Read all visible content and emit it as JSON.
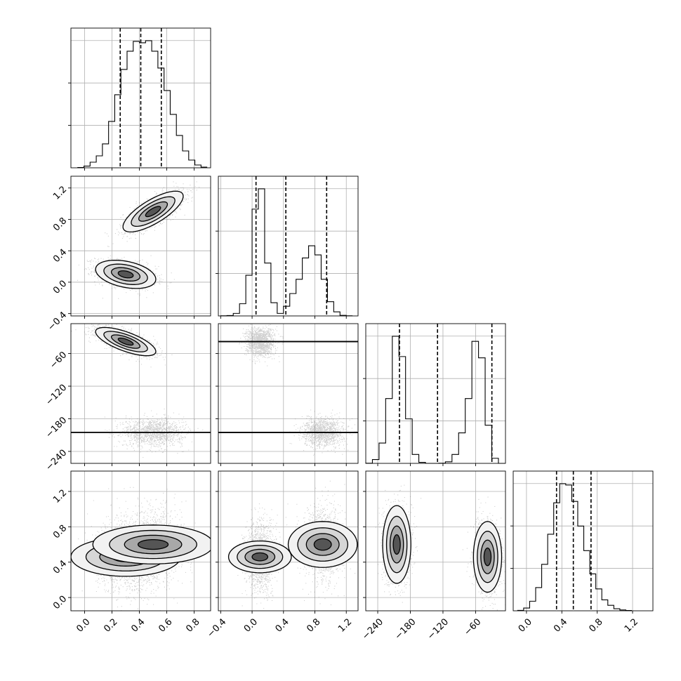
{
  "chart_data": {
    "type": "corner",
    "grid": true,
    "parameters": [
      {
        "range": [
          -0.1,
          0.92
        ],
        "ticks": [
          0.0,
          0.2,
          0.4,
          0.6,
          0.8
        ],
        "tick_labels": [
          "0.0",
          "0.2",
          "0.4",
          "0.6",
          "0.8"
        ]
      },
      {
        "range": [
          -0.43,
          1.35
        ],
        "ticks": [
          -0.4,
          0.0,
          0.4,
          0.8,
          1.2
        ],
        "tick_labels": [
          "−0.4",
          "0.0",
          "0.4",
          "0.8",
          "1.2"
        ]
      },
      {
        "range": [
          -262,
          -5
        ],
        "ticks": [
          -240,
          -180,
          -120,
          -60
        ],
        "tick_labels": [
          "−240",
          "−180",
          "−120",
          "−60"
        ]
      },
      {
        "range": [
          -0.15,
          1.43
        ],
        "ticks": [
          0.0,
          0.4,
          0.8,
          1.2
        ],
        "tick_labels": [
          "0.0",
          "0.4",
          "0.8",
          "1.2"
        ]
      }
    ],
    "axes_labels": {
      "row1_y": [
        "−0.4",
        "0.0",
        "0.4",
        "0.8",
        "1.2"
      ],
      "row2_y": [
        "−240",
        "−180",
        "−120",
        "−60"
      ],
      "row3_y": [
        "0.0",
        "0.4",
        "0.8",
        "1.2"
      ]
    },
    "histograms": [
      {
        "bin_start": -0.05,
        "bin_width": 0.045,
        "counts": [
          2,
          12,
          40,
          85,
          170,
          330,
          520,
          700,
          830,
          900,
          890,
          905,
          830,
          710,
          550,
          380,
          230,
          120,
          55,
          20,
          5
        ],
        "quantiles": [
          0.26,
          0.41,
          0.56
        ]
      },
      {
        "bin_start": -0.4,
        "bin_width": 0.08,
        "counts": [
          1,
          4,
          25,
          120,
          400,
          1050,
          1250,
          520,
          130,
          25,
          95,
          220,
          360,
          570,
          690,
          600,
          360,
          140,
          40,
          6,
          1
        ],
        "quantiles": [
          0.05,
          0.43,
          0.95
        ]
      },
      {
        "bin_start": -262,
        "bin_width": 12.2,
        "counts": [
          1,
          30,
          160,
          510,
          1000,
          840,
          350,
          70,
          8,
          0,
          0,
          1,
          12,
          70,
          240,
          510,
          960,
          830,
          300,
          40,
          0
        ],
        "quantiles": [
          -200,
          -130,
          -30
        ]
      },
      {
        "bin_start": -0.1,
        "bin_width": 0.068,
        "counts": [
          3,
          20,
          70,
          170,
          340,
          560,
          790,
          930,
          920,
          800,
          620,
          440,
          270,
          160,
          80,
          40,
          15,
          6,
          2
        ],
        "quantiles": [
          0.34,
          0.53,
          0.73
        ]
      }
    ],
    "clusters": [
      {
        "mean": [
          0.3,
          0.1,
          -38,
          0.46
        ],
        "sd": [
          0.11,
          0.09,
          13,
          0.2
        ],
        "rho": {
          "0-1": -0.35,
          "0-2": -0.7
        },
        "weight": 0.5
      },
      {
        "mean": [
          0.5,
          0.9,
          -205,
          0.6
        ],
        "sd": [
          0.11,
          0.13,
          13,
          0.22
        ],
        "rho": {
          "0-1": 0.75
        },
        "weight": 0.5
      }
    ]
  }
}
